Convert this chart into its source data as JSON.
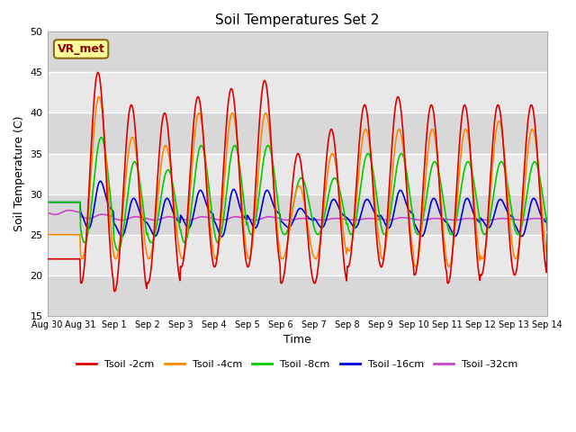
{
  "title": "Soil Temperatures Set 2",
  "xlabel": "Time",
  "ylabel": "Soil Temperature (C)",
  "ylim": [
    15,
    50
  ],
  "xlim": [
    0,
    15
  ],
  "xtick_labels": [
    "Aug 30",
    "Aug 31",
    "Sep 1",
    "Sep 2",
    "Sep 3",
    "Sep 4",
    "Sep 5",
    "Sep 6",
    "Sep 7",
    "Sep 8",
    "Sep 9",
    "Sep 10",
    "Sep 11",
    "Sep 12",
    "Sep 13",
    "Sep 14"
  ],
  "xtick_positions": [
    0,
    1,
    2,
    3,
    4,
    5,
    6,
    7,
    8,
    9,
    10,
    11,
    12,
    13,
    14,
    15
  ],
  "ytick_positions": [
    15,
    20,
    25,
    30,
    35,
    40,
    45,
    50
  ],
  "annotation_text": "VR_met",
  "bg_color": "#e8e8e8",
  "colors": {
    "Tsoil -2cm": "#dd0000",
    "Tsoil -4cm": "#ff8800",
    "Tsoil -8cm": "#00cc00",
    "Tsoil -16cm": "#0000dd",
    "Tsoil -32cm": "#cc44cc"
  }
}
